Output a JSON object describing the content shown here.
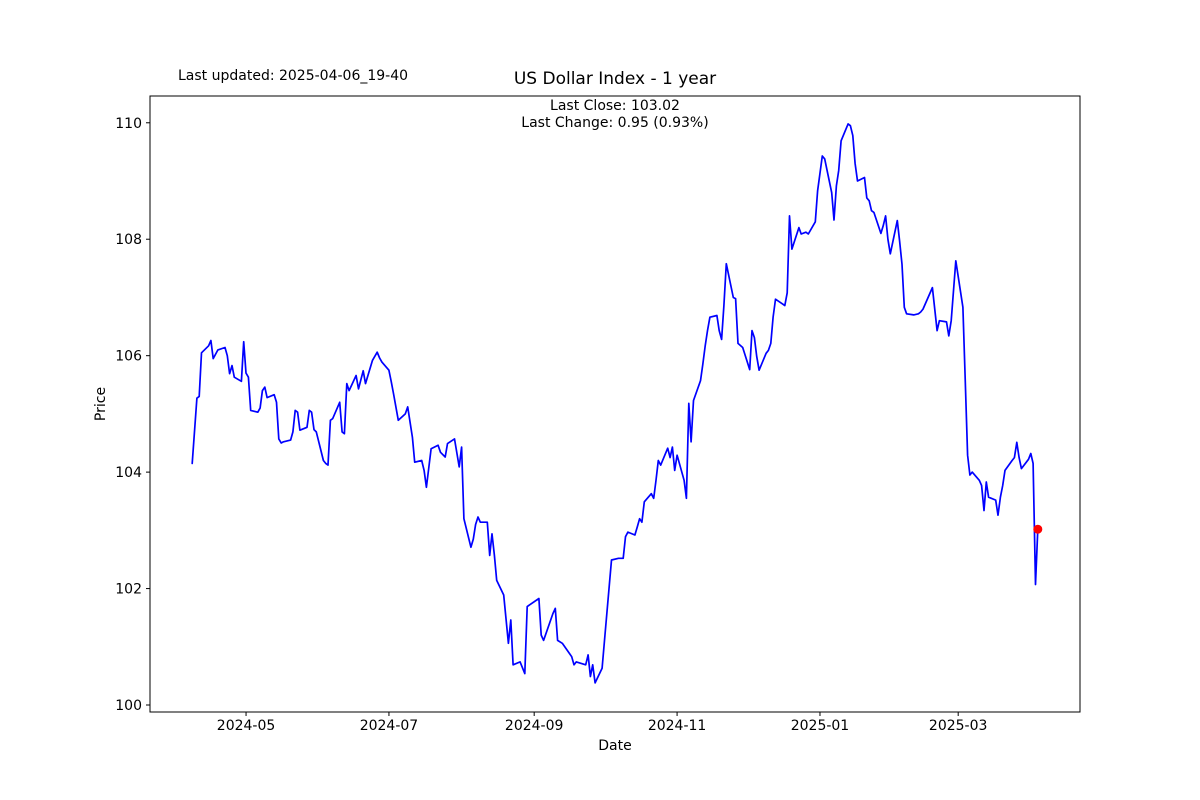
{
  "figure": {
    "last_updated": "Last updated: 2025-04-06_19-40",
    "title": "US Dollar Index - 1 year",
    "subtitle_line1": "Last Close: 103.02",
    "subtitle_line2": "Last Change: 0.95 (0.93%)",
    "xlabel": "Date",
    "ylabel": "Price"
  },
  "chart_data": {
    "type": "line",
    "title": "US Dollar Index - 1 year",
    "xlabel": "Date",
    "ylabel": "Price",
    "last_close": 103.02,
    "last_change_abs": 0.95,
    "last_change_pct": "0.93%",
    "line_color": "#0000ff",
    "marker_color": "#ff0000",
    "axis_color": "#000000",
    "grid": false,
    "legend": "none",
    "x_tick_labels": [
      "2024-05",
      "2024-07",
      "2024-09",
      "2024-11",
      "2025-01",
      "2025-03"
    ],
    "y_tick_labels": [
      100,
      102,
      104,
      106,
      108,
      110
    ],
    "xlim": [
      "2024-03-21",
      "2025-04-22"
    ],
    "ylim": [
      99.88,
      110.46
    ],
    "series": [
      {
        "name": "US Dollar Index",
        "points": [
          [
            "2024-04-08",
            104.15
          ],
          [
            "2024-04-10",
            105.27
          ],
          [
            "2024-04-11",
            105.3
          ],
          [
            "2024-04-12",
            106.05
          ],
          [
            "2024-04-15",
            106.17
          ],
          [
            "2024-04-16",
            106.26
          ],
          [
            "2024-04-17",
            105.95
          ],
          [
            "2024-04-19",
            106.1
          ],
          [
            "2024-04-22",
            106.14
          ],
          [
            "2024-04-23",
            106.0
          ],
          [
            "2024-04-24",
            105.69
          ],
          [
            "2024-04-25",
            105.83
          ],
          [
            "2024-04-26",
            105.63
          ],
          [
            "2024-04-29",
            105.56
          ],
          [
            "2024-04-30",
            106.24
          ],
          [
            "2024-05-01",
            105.7
          ],
          [
            "2024-05-02",
            105.63
          ],
          [
            "2024-05-03",
            105.06
          ],
          [
            "2024-05-06",
            105.03
          ],
          [
            "2024-05-07",
            105.1
          ],
          [
            "2024-05-08",
            105.4
          ],
          [
            "2024-05-09",
            105.46
          ],
          [
            "2024-05-10",
            105.28
          ],
          [
            "2024-05-13",
            105.33
          ],
          [
            "2024-05-14",
            105.2
          ],
          [
            "2024-05-15",
            104.57
          ],
          [
            "2024-05-16",
            104.5
          ],
          [
            "2024-05-17",
            104.52
          ],
          [
            "2024-05-20",
            104.55
          ],
          [
            "2024-05-21",
            104.69
          ],
          [
            "2024-05-22",
            105.06
          ],
          [
            "2024-05-23",
            105.03
          ],
          [
            "2024-05-24",
            104.72
          ],
          [
            "2024-05-27",
            104.77
          ],
          [
            "2024-05-28",
            105.06
          ],
          [
            "2024-05-29",
            105.03
          ],
          [
            "2024-05-30",
            104.73
          ],
          [
            "2024-05-31",
            104.69
          ],
          [
            "2024-06-03",
            104.2
          ],
          [
            "2024-06-04",
            104.15
          ],
          [
            "2024-06-05",
            104.12
          ],
          [
            "2024-06-06",
            104.89
          ],
          [
            "2024-06-07",
            104.92
          ],
          [
            "2024-06-10",
            105.2
          ],
          [
            "2024-06-11",
            104.69
          ],
          [
            "2024-06-12",
            104.66
          ],
          [
            "2024-06-13",
            105.52
          ],
          [
            "2024-06-14",
            105.4
          ],
          [
            "2024-06-17",
            105.66
          ],
          [
            "2024-06-18",
            105.43
          ],
          [
            "2024-06-20",
            105.74
          ],
          [
            "2024-06-21",
            105.52
          ],
          [
            "2024-06-24",
            105.92
          ],
          [
            "2024-06-26",
            106.06
          ],
          [
            "2024-06-27",
            105.96
          ],
          [
            "2024-06-28",
            105.89
          ],
          [
            "2024-07-01",
            105.75
          ],
          [
            "2024-07-02",
            105.55
          ],
          [
            "2024-07-03",
            105.34
          ],
          [
            "2024-07-05",
            104.89
          ],
          [
            "2024-07-08",
            105.0
          ],
          [
            "2024-07-09",
            105.12
          ],
          [
            "2024-07-11",
            104.6
          ],
          [
            "2024-07-12",
            104.17
          ],
          [
            "2024-07-15",
            104.2
          ],
          [
            "2024-07-16",
            104.03
          ],
          [
            "2024-07-17",
            103.74
          ],
          [
            "2024-07-19",
            104.4
          ],
          [
            "2024-07-22",
            104.46
          ],
          [
            "2024-07-23",
            104.34
          ],
          [
            "2024-07-25",
            104.26
          ],
          [
            "2024-07-26",
            104.49
          ],
          [
            "2024-07-29",
            104.57
          ],
          [
            "2024-07-31",
            104.09
          ],
          [
            "2024-08-01",
            104.43
          ],
          [
            "2024-08-02",
            103.2
          ],
          [
            "2024-08-05",
            102.71
          ],
          [
            "2024-08-06",
            102.85
          ],
          [
            "2024-08-07",
            103.1
          ],
          [
            "2024-08-08",
            103.23
          ],
          [
            "2024-08-09",
            103.14
          ],
          [
            "2024-08-12",
            103.14
          ],
          [
            "2024-08-13",
            102.57
          ],
          [
            "2024-08-14",
            102.94
          ],
          [
            "2024-08-15",
            102.57
          ],
          [
            "2024-08-16",
            102.14
          ],
          [
            "2024-08-19",
            101.89
          ],
          [
            "2024-08-21",
            101.06
          ],
          [
            "2024-08-22",
            101.46
          ],
          [
            "2024-08-23",
            100.69
          ],
          [
            "2024-08-26",
            100.74
          ],
          [
            "2024-08-28",
            100.54
          ],
          [
            "2024-08-29",
            101.69
          ],
          [
            "2024-08-30",
            101.72
          ],
          [
            "2024-09-03",
            101.83
          ],
          [
            "2024-09-04",
            101.2
          ],
          [
            "2024-09-05",
            101.11
          ],
          [
            "2024-09-09",
            101.57
          ],
          [
            "2024-09-10",
            101.66
          ],
          [
            "2024-09-11",
            101.11
          ],
          [
            "2024-09-13",
            101.06
          ],
          [
            "2024-09-16",
            100.89
          ],
          [
            "2024-09-17",
            100.83
          ],
          [
            "2024-09-18",
            100.69
          ],
          [
            "2024-09-19",
            100.74
          ],
          [
            "2024-09-23",
            100.69
          ],
          [
            "2024-09-24",
            100.86
          ],
          [
            "2024-09-25",
            100.49
          ],
          [
            "2024-09-26",
            100.69
          ],
          [
            "2024-09-27",
            100.38
          ],
          [
            "2024-09-30",
            100.63
          ],
          [
            "2024-10-01",
            101.11
          ],
          [
            "2024-10-04",
            102.49
          ],
          [
            "2024-10-07",
            102.52
          ],
          [
            "2024-10-09",
            102.52
          ],
          [
            "2024-10-10",
            102.89
          ],
          [
            "2024-10-11",
            102.97
          ],
          [
            "2024-10-14",
            102.92
          ],
          [
            "2024-10-15",
            103.06
          ],
          [
            "2024-10-16",
            103.2
          ],
          [
            "2024-10-17",
            103.14
          ],
          [
            "2024-10-18",
            103.49
          ],
          [
            "2024-10-21",
            103.63
          ],
          [
            "2024-10-22",
            103.55
          ],
          [
            "2024-10-23",
            103.86
          ],
          [
            "2024-10-24",
            104.2
          ],
          [
            "2024-10-25",
            104.12
          ],
          [
            "2024-10-28",
            104.41
          ],
          [
            "2024-10-29",
            104.25
          ],
          [
            "2024-10-30",
            104.43
          ],
          [
            "2024-10-31",
            104.03
          ],
          [
            "2024-11-01",
            104.29
          ],
          [
            "2024-11-04",
            103.86
          ],
          [
            "2024-11-05",
            103.55
          ],
          [
            "2024-11-06",
            105.18
          ],
          [
            "2024-11-07",
            104.52
          ],
          [
            "2024-11-08",
            105.23
          ],
          [
            "2024-11-11",
            105.57
          ],
          [
            "2024-11-12",
            105.85
          ],
          [
            "2024-11-13",
            106.17
          ],
          [
            "2024-11-14",
            106.43
          ],
          [
            "2024-11-15",
            106.66
          ],
          [
            "2024-11-18",
            106.69
          ],
          [
            "2024-11-19",
            106.43
          ],
          [
            "2024-11-20",
            106.28
          ],
          [
            "2024-11-21",
            106.86
          ],
          [
            "2024-11-22",
            107.58
          ],
          [
            "2024-11-25",
            107.0
          ],
          [
            "2024-11-26",
            106.98
          ],
          [
            "2024-11-27",
            106.21
          ],
          [
            "2024-11-29",
            106.14
          ],
          [
            "2024-12-02",
            105.76
          ],
          [
            "2024-12-03",
            106.43
          ],
          [
            "2024-12-04",
            106.31
          ],
          [
            "2024-12-05",
            105.99
          ],
          [
            "2024-12-06",
            105.75
          ],
          [
            "2024-12-09",
            106.04
          ],
          [
            "2024-12-10",
            106.09
          ],
          [
            "2024-12-11",
            106.21
          ],
          [
            "2024-12-12",
            106.66
          ],
          [
            "2024-12-13",
            106.97
          ],
          [
            "2024-12-16",
            106.89
          ],
          [
            "2024-12-17",
            106.86
          ],
          [
            "2024-12-18",
            107.08
          ],
          [
            "2024-12-19",
            108.4
          ],
          [
            "2024-12-20",
            107.83
          ],
          [
            "2024-12-23",
            108.2
          ],
          [
            "2024-12-24",
            108.09
          ],
          [
            "2024-12-26",
            108.12
          ],
          [
            "2024-12-27",
            108.09
          ],
          [
            "2024-12-30",
            108.3
          ],
          [
            "2024-12-31",
            108.83
          ],
          [
            "2025-01-02",
            109.43
          ],
          [
            "2025-01-03",
            109.38
          ],
          [
            "2025-01-06",
            108.8
          ],
          [
            "2025-01-07",
            108.33
          ],
          [
            "2025-01-08",
            108.92
          ],
          [
            "2025-01-09",
            109.18
          ],
          [
            "2025-01-10",
            109.69
          ],
          [
            "2025-01-13",
            109.98
          ],
          [
            "2025-01-14",
            109.95
          ],
          [
            "2025-01-15",
            109.78
          ],
          [
            "2025-01-16",
            109.3
          ],
          [
            "2025-01-17",
            109.0
          ],
          [
            "2025-01-20",
            109.06
          ],
          [
            "2025-01-21",
            108.71
          ],
          [
            "2025-01-22",
            108.66
          ],
          [
            "2025-01-23",
            108.49
          ],
          [
            "2025-01-24",
            108.46
          ],
          [
            "2025-01-27",
            108.1
          ],
          [
            "2025-01-28",
            108.23
          ],
          [
            "2025-01-29",
            108.4
          ],
          [
            "2025-01-30",
            108.0
          ],
          [
            "2025-01-31",
            107.75
          ],
          [
            "2025-02-03",
            108.32
          ],
          [
            "2025-02-04",
            107.97
          ],
          [
            "2025-02-05",
            107.57
          ],
          [
            "2025-02-06",
            106.83
          ],
          [
            "2025-02-07",
            106.72
          ],
          [
            "2025-02-10",
            106.7
          ],
          [
            "2025-02-12",
            106.72
          ],
          [
            "2025-02-13",
            106.75
          ],
          [
            "2025-02-14",
            106.8
          ],
          [
            "2025-02-18",
            107.17
          ],
          [
            "2025-02-20",
            106.43
          ],
          [
            "2025-02-21",
            106.6
          ],
          [
            "2025-02-24",
            106.58
          ],
          [
            "2025-02-25",
            106.34
          ],
          [
            "2025-02-26",
            106.6
          ],
          [
            "2025-02-28",
            107.63
          ],
          [
            "2025-03-03",
            106.83
          ],
          [
            "2025-03-04",
            105.6
          ],
          [
            "2025-03-05",
            104.29
          ],
          [
            "2025-03-06",
            103.95
          ],
          [
            "2025-03-07",
            104.0
          ],
          [
            "2025-03-10",
            103.86
          ],
          [
            "2025-03-11",
            103.77
          ],
          [
            "2025-03-12",
            103.34
          ],
          [
            "2025-03-13",
            103.83
          ],
          [
            "2025-03-14",
            103.57
          ],
          [
            "2025-03-17",
            103.52
          ],
          [
            "2025-03-18",
            103.26
          ],
          [
            "2025-03-19",
            103.57
          ],
          [
            "2025-03-20",
            103.77
          ],
          [
            "2025-03-21",
            104.03
          ],
          [
            "2025-03-24",
            104.2
          ],
          [
            "2025-03-25",
            104.25
          ],
          [
            "2025-03-26",
            104.51
          ],
          [
            "2025-03-27",
            104.25
          ],
          [
            "2025-03-28",
            104.06
          ],
          [
            "2025-03-31",
            104.22
          ],
          [
            "2025-04-01",
            104.32
          ],
          [
            "2025-04-02",
            104.15
          ],
          [
            "2025-04-03",
            102.07
          ],
          [
            "2025-04-04",
            103.02
          ]
        ]
      }
    ]
  }
}
